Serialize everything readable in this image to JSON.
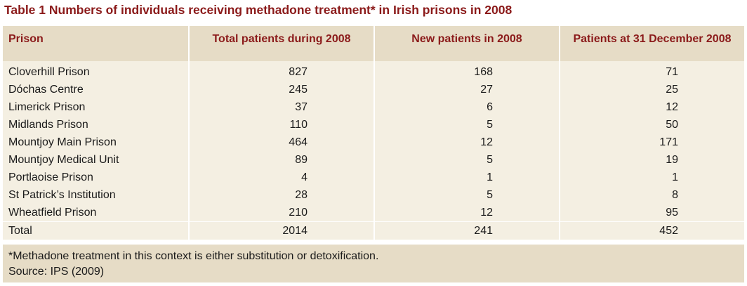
{
  "caption": "Table 1  Numbers of individuals receiving methadone treatment* in Irish prisons in 2008",
  "headers": [
    "Prison",
    "Total patients during 2008",
    "New patients in 2008",
    "Patients at 31 December 2008"
  ],
  "rows": [
    {
      "prison": "Cloverhill Prison",
      "total": "827",
      "new": "168",
      "dec31": "71"
    },
    {
      "prison": "Dóchas Centre",
      "total": "245",
      "new": "27",
      "dec31": "25"
    },
    {
      "prison": "Limerick Prison",
      "total": "37",
      "new": "6",
      "dec31": "12"
    },
    {
      "prison": "Midlands Prison",
      "total": "110",
      "new": "5",
      "dec31": "50"
    },
    {
      "prison": "Mountjoy Main Prison",
      "total": "464",
      "new": "12",
      "dec31": "171"
    },
    {
      "prison": "Mountjoy Medical Unit",
      "total": "89",
      "new": "5",
      "dec31": "19"
    },
    {
      "prison": "Portlaoise Prison",
      "total": "4",
      "new": "1",
      "dec31": "1"
    },
    {
      "prison": "St Patrick’s Institution",
      "total": "28",
      "new": "5",
      "dec31": "8"
    },
    {
      "prison": "Wheatfield Prison",
      "total": "210",
      "new": "12",
      "dec31": "95"
    },
    {
      "prison": "Total",
      "total": "2014",
      "new": "241",
      "dec31": "452"
    }
  ],
  "footnote": {
    "note": "*Methadone treatment in this context is either substitution or detoxification.",
    "source": "Source: IPS (2009)"
  }
}
